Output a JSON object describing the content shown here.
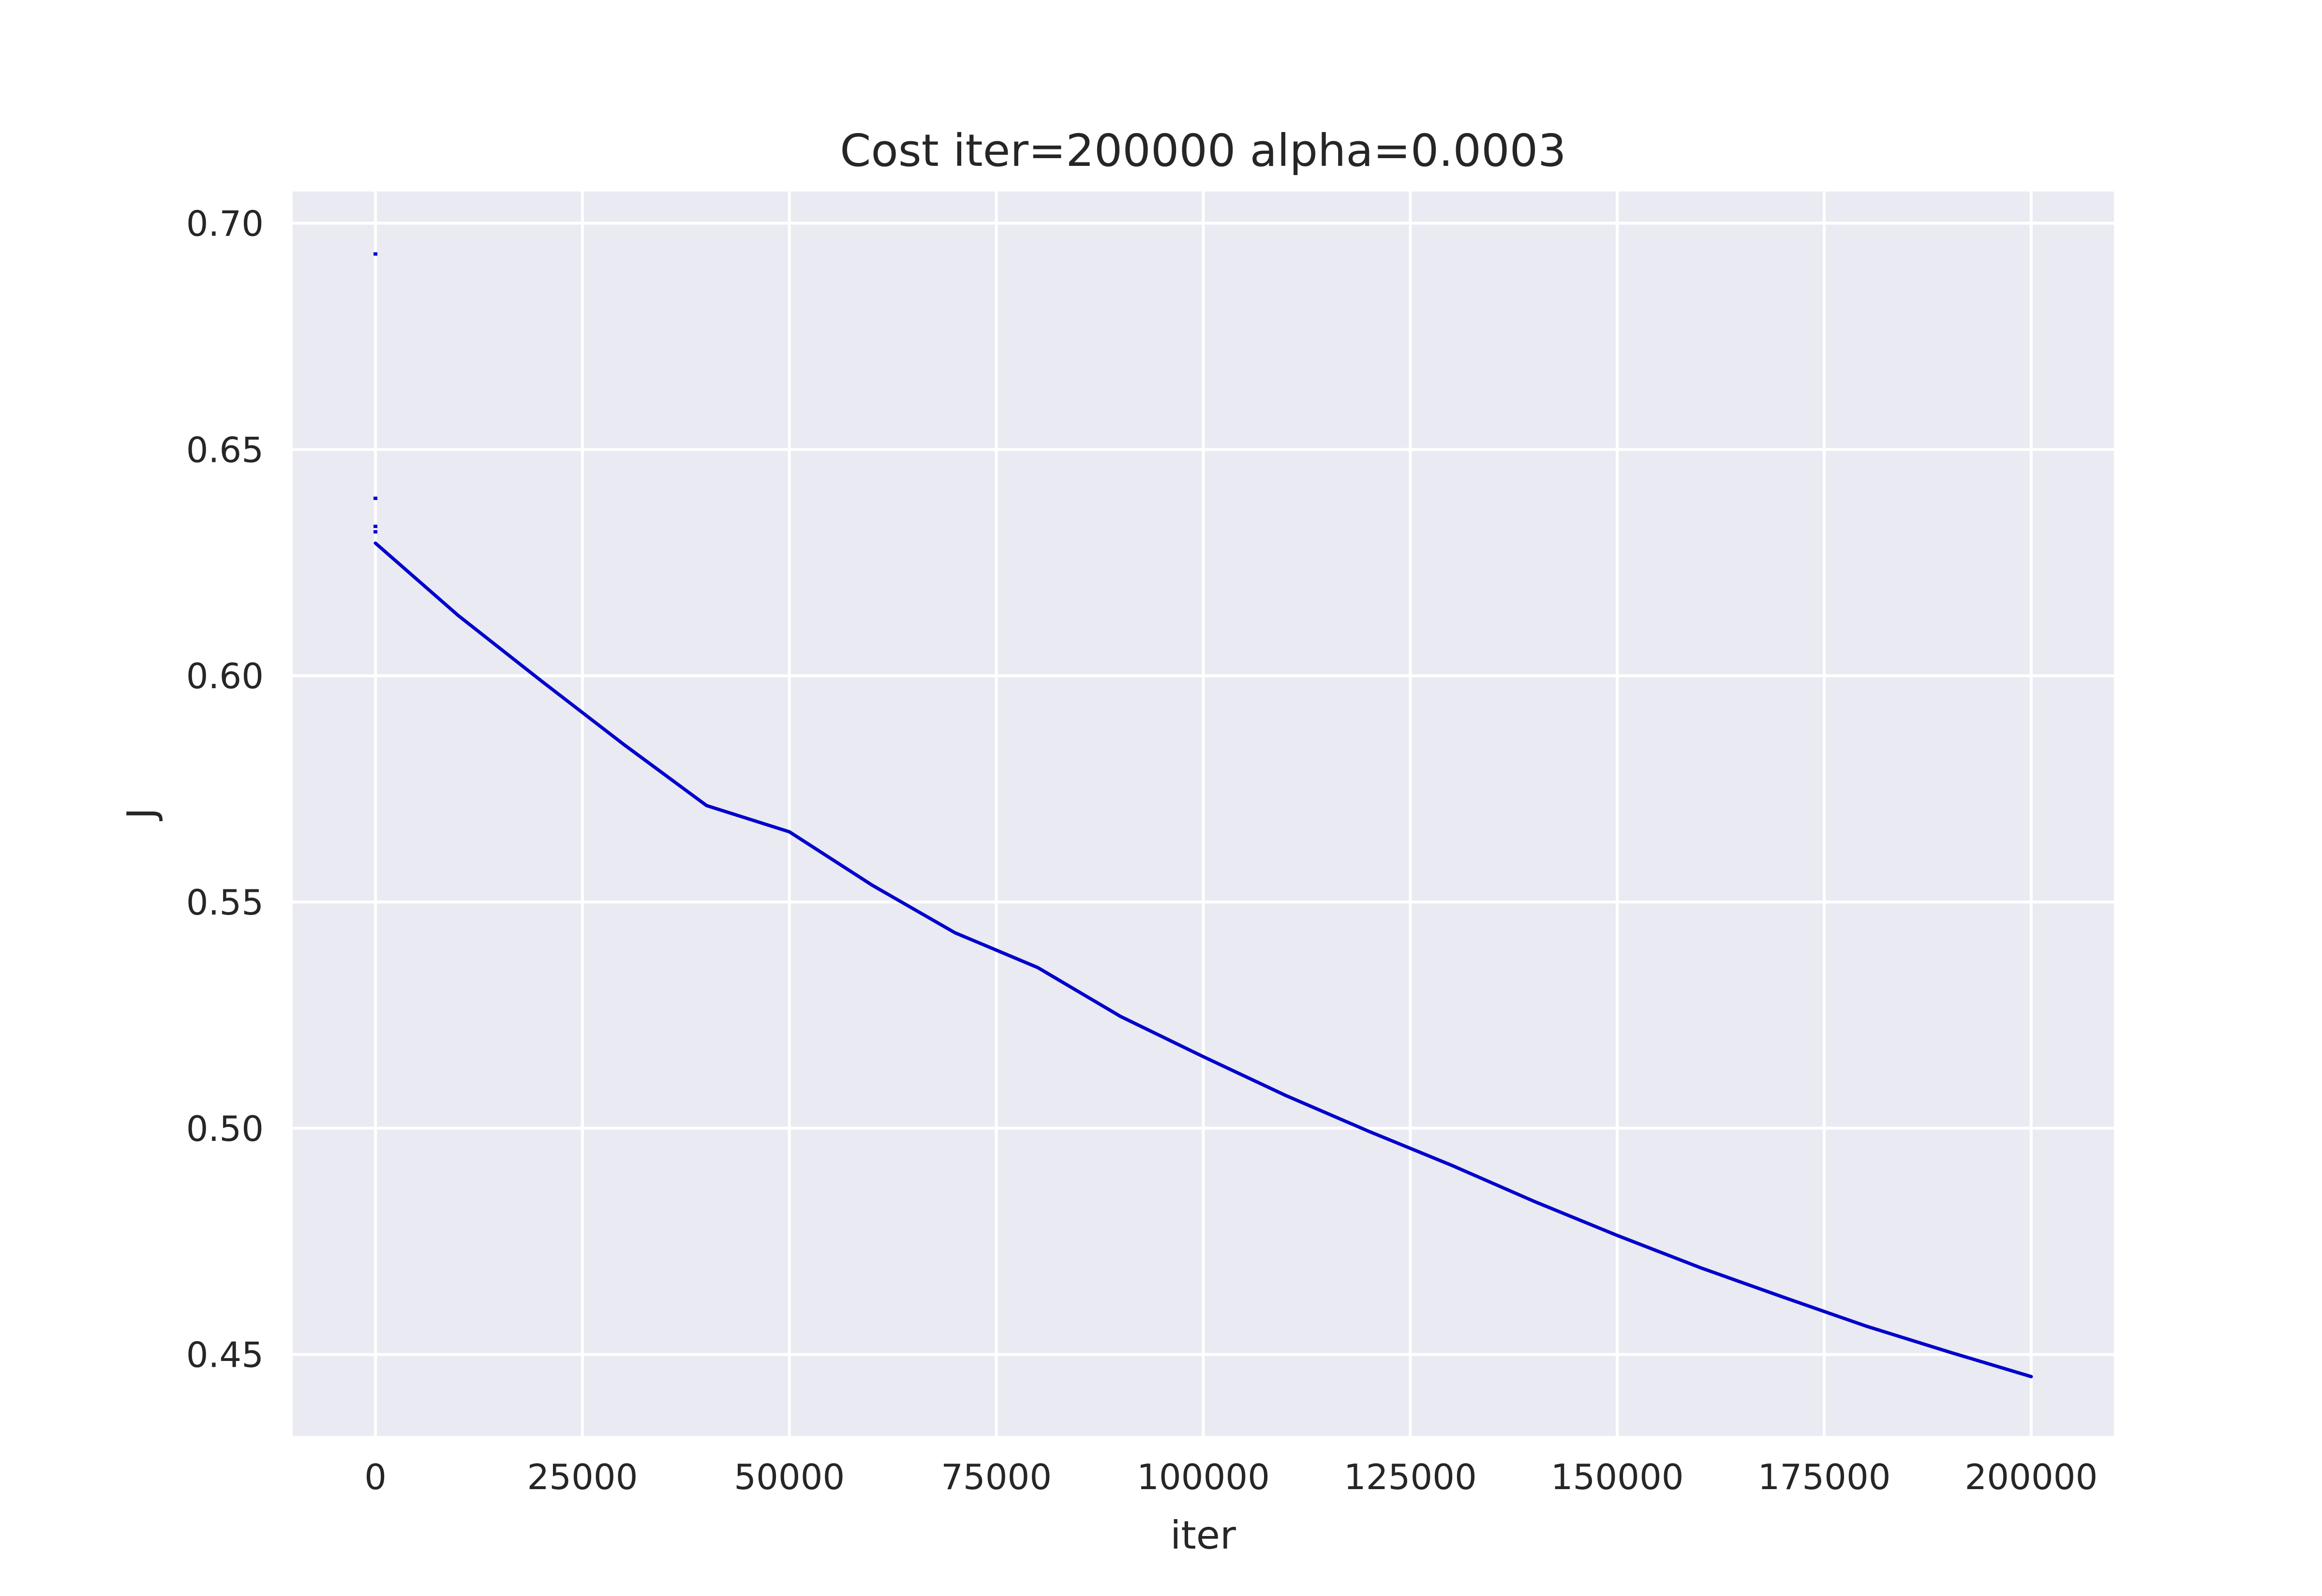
{
  "chart_data": {
    "type": "line",
    "title": "Cost iter=200000 alpha=0.0003",
    "xlabel": "iter",
    "ylabel": "J",
    "xlim": [
      -10000,
      210000
    ],
    "ylim": [
      0.432,
      0.707
    ],
    "x_ticks": [
      0,
      25000,
      50000,
      75000,
      100000,
      125000,
      150000,
      175000,
      200000
    ],
    "x_tick_labels": [
      "0",
      "25000",
      "50000",
      "75000",
      "100000",
      "125000",
      "150000",
      "175000",
      "200000"
    ],
    "y_ticks": [
      0.45,
      0.5,
      0.55,
      0.6,
      0.65,
      0.7
    ],
    "y_tick_labels": [
      "0.45",
      "0.50",
      "0.55",
      "0.60",
      "0.65",
      "0.70"
    ],
    "grid": true,
    "colors": {
      "plot_background": "#eaeaf2",
      "grid": "#ffffff",
      "series": "#0000cc",
      "text": "#262626"
    },
    "series": [
      {
        "x": [
          0,
          10000,
          20000,
          30000,
          40000,
          50000,
          60000,
          70000,
          80000,
          90000,
          100000,
          110000,
          120000,
          130000,
          140000,
          150000,
          160000,
          170000,
          180000,
          190000,
          200000
        ],
        "values": [
          0.6293,
          0.6133,
          0.5989,
          0.5848,
          0.5713,
          0.5655,
          0.5537,
          0.5432,
          0.5355,
          0.5247,
          0.5158,
          0.5072,
          0.4993,
          0.4918,
          0.4838,
          0.4763,
          0.4692,
          0.4627,
          0.4563,
          0.4506,
          0.4451
        ]
      }
    ],
    "early_points": [
      {
        "x": 0,
        "y": 0.6932
      },
      {
        "x": 0,
        "y": 0.6392
      },
      {
        "x": 0,
        "y": 0.633
      },
      {
        "x": 0,
        "y": 0.6318
      }
    ]
  }
}
